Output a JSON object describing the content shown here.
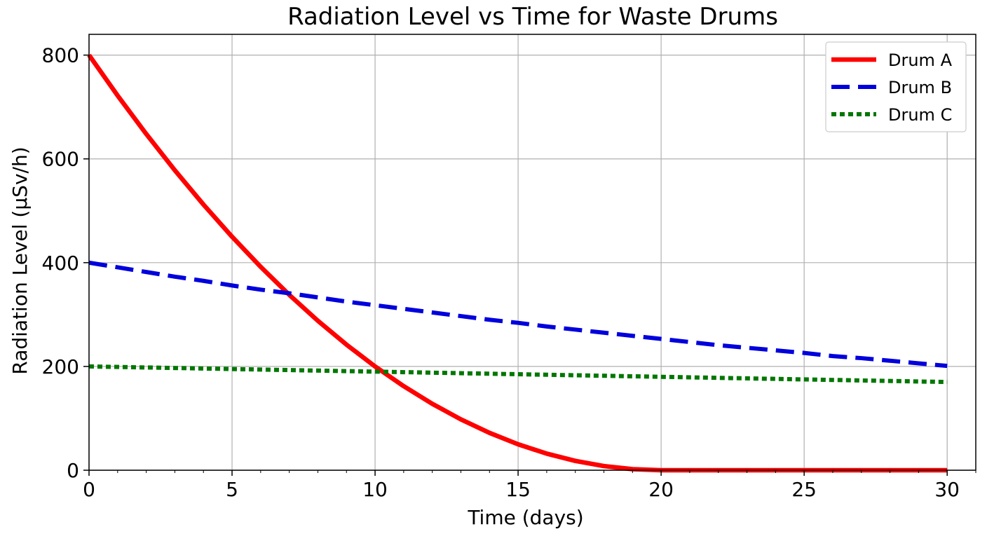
{
  "chart_data": {
    "type": "line",
    "title": "Radiation Level vs Time for Waste Drums",
    "xlabel": "Time (days)",
    "ylabel": "Radiation Level (μSv/h)",
    "xlim": [
      0,
      31
    ],
    "ylim": [
      0,
      840
    ],
    "x_ticks": [
      0,
      5,
      10,
      15,
      20,
      25,
      30
    ],
    "y_ticks": [
      0,
      200,
      400,
      600,
      800
    ],
    "grid": true,
    "legend_position": "top-right",
    "series": [
      {
        "name": "Drum A",
        "color": "#ff0000",
        "style": "solid",
        "x": [
          0,
          1,
          2,
          3,
          4,
          5,
          6,
          7,
          8,
          9,
          10,
          11,
          12,
          13,
          14,
          15,
          16,
          17,
          18,
          19,
          20,
          21,
          22,
          23,
          24,
          25,
          26,
          27,
          28,
          29,
          30
        ],
        "y": [
          800,
          722,
          648,
          578,
          512,
          450,
          392,
          338,
          288,
          242,
          200,
          162,
          128,
          98,
          72,
          50,
          32,
          18,
          8,
          2,
          0,
          0,
          0,
          0,
          0,
          0,
          0,
          0,
          0,
          0,
          0
        ]
      },
      {
        "name": "Drum B",
        "color": "#0000dd",
        "style": "dashed",
        "x": [
          0,
          1,
          2,
          3,
          4,
          5,
          6,
          7,
          8,
          9,
          10,
          11,
          12,
          13,
          14,
          15,
          16,
          17,
          18,
          19,
          20,
          21,
          22,
          23,
          24,
          25,
          26,
          27,
          28,
          29,
          30
        ],
        "y": [
          400,
          391,
          382,
          373,
          365,
          356,
          348,
          341,
          333,
          325,
          318,
          311,
          304,
          297,
          290,
          284,
          277,
          271,
          265,
          259,
          253,
          247,
          241,
          236,
          231,
          226,
          220,
          216,
          211,
          206,
          201
        ]
      },
      {
        "name": "Drum C",
        "color": "#007700",
        "style": "dotted",
        "x": [
          0,
          5,
          10,
          15,
          20,
          25,
          30
        ],
        "y": [
          200,
          195,
          190,
          185,
          180,
          175,
          170
        ]
      }
    ]
  }
}
